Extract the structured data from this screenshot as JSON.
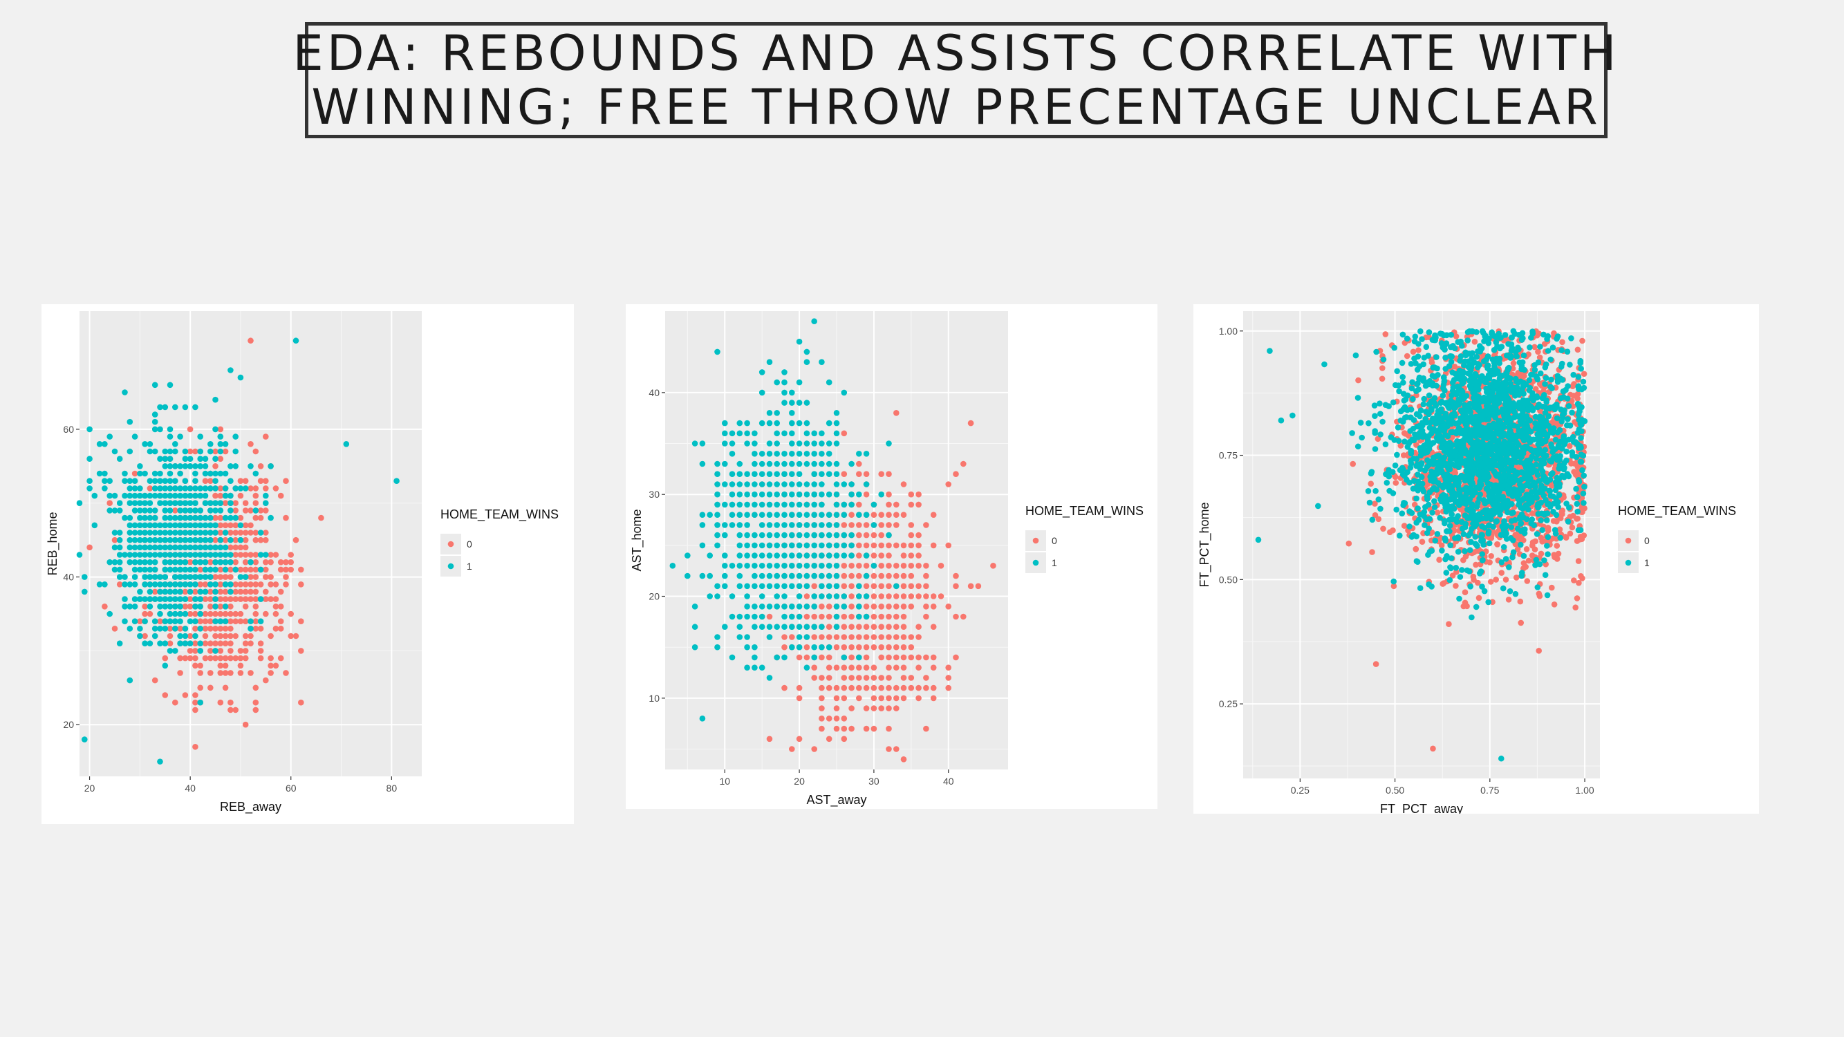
{
  "slide": {
    "title_line1": "EDA: REBOUNDS AND ASSISTS CORRELATE WITH",
    "title_line2": "WINNING; FREE THROW PRECENTAGE UNCLEAR"
  },
  "colors": {
    "class0": "#F8766D",
    "class1": "#00BFC4",
    "panel_bg": "#EBEBEB",
    "grid": "#FFFFFF"
  },
  "chart_data": [
    {
      "type": "scatter",
      "title": "",
      "xlabel": "REB_away",
      "ylabel": "REB_home",
      "xlim": [
        18,
        86
      ],
      "ylim": [
        13,
        76
      ],
      "xticks": [
        20,
        40,
        60,
        80
      ],
      "yticks": [
        20,
        40,
        60
      ],
      "xtick_labels": [
        "20",
        "40",
        "60",
        "80"
      ],
      "ytick_labels": [
        "20",
        "40",
        "60"
      ],
      "grid": true,
      "legend": {
        "title": "HOME_TEAM_WINS",
        "entries": [
          "0",
          "1"
        ],
        "placement": "right"
      },
      "series": [
        {
          "name": "0",
          "color": "#F8766D",
          "center": [
            45,
            40
          ],
          "spread": [
            6.5,
            7
          ],
          "n": 900,
          "integer": true,
          "outliers": [
            [
              52,
              72
            ],
            [
              41,
              17
            ],
            [
              62,
              23
            ],
            [
              66,
              48
            ]
          ]
        },
        {
          "name": "1",
          "color": "#00BFC4",
          "center": [
            37,
            46
          ],
          "spread": [
            6.5,
            7
          ],
          "n": 900,
          "integer": true,
          "outliers": [
            [
              19,
              18
            ],
            [
              34,
              15
            ],
            [
              81,
              53
            ],
            [
              61,
              72
            ],
            [
              71,
              58
            ]
          ]
        }
      ]
    },
    {
      "type": "scatter",
      "title": "",
      "xlabel": "AST_away",
      "ylabel": "AST_home",
      "xlim": [
        2,
        48
      ],
      "ylim": [
        3,
        48
      ],
      "xticks": [
        10,
        20,
        30,
        40
      ],
      "yticks": [
        10,
        20,
        30,
        40
      ],
      "xtick_labels": [
        "10",
        "20",
        "30",
        "40"
      ],
      "ytick_labels": [
        "10",
        "20",
        "30",
        "40"
      ],
      "grid": true,
      "legend": {
        "title": "HOME_TEAM_WINS",
        "entries": [
          "0",
          "1"
        ],
        "placement": "right"
      },
      "series": [
        {
          "name": "0",
          "color": "#F8766D",
          "center": [
            28,
            19
          ],
          "spread": [
            5,
            5.5
          ],
          "n": 900,
          "integer": true,
          "outliers": [
            [
              46,
              23
            ],
            [
              43,
              37
            ],
            [
              42,
              33
            ],
            [
              16,
              6
            ],
            [
              20,
              6
            ]
          ]
        },
        {
          "name": "1",
          "color": "#00BFC4",
          "center": [
            18,
            27
          ],
          "spread": [
            5,
            5.5
          ],
          "n": 900,
          "integer": true,
          "outliers": [
            [
              22,
              47
            ],
            [
              20,
              45
            ],
            [
              5,
              24
            ],
            [
              7,
              8
            ],
            [
              6,
              17
            ]
          ]
        }
      ]
    },
    {
      "type": "scatter",
      "title": "",
      "xlabel": "FT_PCT_away",
      "ylabel": "FT_PCT_home",
      "xlim": [
        0.1,
        1.04
      ],
      "ylim": [
        0.1,
        1.04
      ],
      "xticks": [
        0.25,
        0.5,
        0.75,
        1.0
      ],
      "yticks": [
        0.25,
        0.5,
        0.75,
        1.0
      ],
      "xtick_labels": [
        "0.25",
        "0.50",
        "0.75",
        "1.00"
      ],
      "ytick_labels": [
        "0.25",
        "0.50",
        "0.75",
        "1.00"
      ],
      "grid": true,
      "legend": {
        "title": "HOME_TEAM_WINS",
        "entries": [
          "0",
          "1"
        ],
        "placement": "right"
      },
      "series": [
        {
          "name": "0",
          "color": "#F8766D",
          "center": [
            0.76,
            0.74
          ],
          "spread": [
            0.12,
            0.11
          ],
          "n": 1800,
          "integer": false,
          "outliers": [
            [
              0.6,
              0.16
            ],
            [
              0.45,
              0.33
            ],
            [
              0.92,
              0.45
            ]
          ]
        },
        {
          "name": "1",
          "color": "#00BFC4",
          "center": [
            0.74,
            0.78
          ],
          "spread": [
            0.12,
            0.11
          ],
          "n": 2000,
          "integer": false,
          "outliers": [
            [
              0.17,
              0.96
            ],
            [
              0.14,
              0.58
            ],
            [
              0.78,
              0.14
            ],
            [
              0.2,
              0.82
            ],
            [
              0.23,
              0.83
            ]
          ]
        }
      ]
    }
  ]
}
